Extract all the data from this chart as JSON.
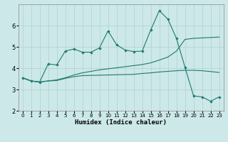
{
  "xlabel": "Humidex (Indice chaleur)",
  "xlim": [
    -0.5,
    23.5
  ],
  "ylim": [
    2,
    7
  ],
  "yticks": [
    2,
    3,
    4,
    5,
    6
  ],
  "xticks": [
    0,
    1,
    2,
    3,
    4,
    5,
    6,
    7,
    8,
    9,
    10,
    11,
    12,
    13,
    14,
    15,
    16,
    17,
    18,
    19,
    20,
    21,
    22,
    23
  ],
  "bg_color": "#cde8e8",
  "line_color": "#1a7a6e",
  "grid_color": "#afd0d0",
  "series": {
    "line1_x": [
      0,
      1,
      2,
      3,
      4,
      5,
      6,
      7,
      8,
      9,
      10,
      11,
      12,
      13,
      14,
      15,
      16,
      17,
      18,
      19,
      20,
      21,
      22,
      23
    ],
    "line1_y": [
      3.55,
      3.4,
      3.35,
      4.2,
      4.15,
      4.8,
      4.9,
      4.75,
      4.75,
      4.95,
      5.75,
      5.1,
      4.85,
      4.78,
      4.8,
      5.8,
      6.7,
      6.3,
      5.4,
      4.05,
      2.7,
      2.65,
      2.45,
      2.65
    ],
    "line2_x": [
      0,
      1,
      2,
      3,
      4,
      5,
      6,
      7,
      8,
      9,
      10,
      11,
      12,
      13,
      14,
      15,
      16,
      17,
      18,
      19,
      20,
      21,
      22,
      23
    ],
    "line2_y": [
      3.55,
      3.4,
      3.35,
      3.4,
      3.42,
      3.52,
      3.6,
      3.65,
      3.66,
      3.67,
      3.68,
      3.69,
      3.7,
      3.71,
      3.75,
      3.78,
      3.82,
      3.85,
      3.88,
      3.9,
      3.9,
      3.88,
      3.84,
      3.8
    ],
    "line3_x": [
      0,
      1,
      2,
      3,
      4,
      5,
      6,
      7,
      8,
      9,
      10,
      11,
      12,
      13,
      14,
      15,
      16,
      17,
      18,
      19,
      20,
      21,
      22,
      23
    ],
    "line3_y": [
      3.55,
      3.4,
      3.35,
      3.4,
      3.45,
      3.55,
      3.68,
      3.78,
      3.85,
      3.92,
      3.97,
      4.02,
      4.07,
      4.12,
      4.17,
      4.25,
      4.38,
      4.52,
      4.8,
      5.35,
      5.4,
      5.42,
      5.44,
      5.46
    ]
  }
}
